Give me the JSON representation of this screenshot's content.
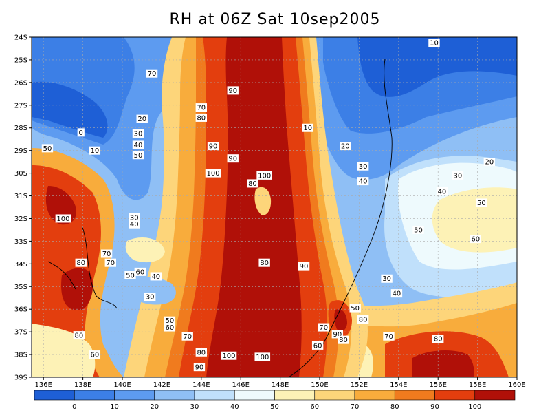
{
  "title": "RH at 06Z Sat 10sep2005",
  "axes": {
    "lon_labels": [
      "136E",
      "138E",
      "140E",
      "142E",
      "144E",
      "146E",
      "148E",
      "150E",
      "152E",
      "154E",
      "156E",
      "158E",
      "160E"
    ],
    "lat_labels": [
      "24S",
      "25S",
      "26S",
      "27S",
      "28S",
      "29S",
      "30S",
      "31S",
      "32S",
      "33S",
      "34S",
      "35S",
      "36S",
      "37S",
      "38S",
      "39S"
    ],
    "lon_range": [
      135.4,
      160
    ],
    "lat_range": [
      -39,
      -24
    ],
    "grid": true
  },
  "colorbar": {
    "labels": [
      "0",
      "10",
      "20",
      "30",
      "40",
      "50",
      "60",
      "70",
      "80",
      "90",
      "100"
    ],
    "colors": [
      "#1e5fd6",
      "#3c7fe6",
      "#5d9bf0",
      "#8fbff5",
      "#c0e0fb",
      "#eefafd",
      "#fdf2b6",
      "#fdd57a",
      "#f8ac3c",
      "#f07b1e",
      "#e33e0e",
      "#b01008"
    ]
  },
  "contour_labels": [
    {
      "text": "10",
      "lon": 155.8,
      "lat": -24.25
    },
    {
      "text": "70",
      "lon": 141.5,
      "lat": -25.6
    },
    {
      "text": "90",
      "lon": 145.6,
      "lat": -26.35
    },
    {
      "text": "70",
      "lon": 144.0,
      "lat": -27.1
    },
    {
      "text": "80",
      "lon": 144.0,
      "lat": -27.55
    },
    {
      "text": "20",
      "lon": 141.0,
      "lat": -27.6
    },
    {
      "text": "10",
      "lon": 149.4,
      "lat": -28.0
    },
    {
      "text": "0",
      "lon": 137.9,
      "lat": -28.2
    },
    {
      "text": "30",
      "lon": 140.8,
      "lat": -28.25
    },
    {
      "text": "40",
      "lon": 140.8,
      "lat": -28.75
    },
    {
      "text": "90",
      "lon": 144.6,
      "lat": -28.8
    },
    {
      "text": "20",
      "lon": 151.3,
      "lat": -28.8
    },
    {
      "text": "10",
      "lon": 138.6,
      "lat": -29.0
    },
    {
      "text": "50",
      "lon": 136.2,
      "lat": -28.9
    },
    {
      "text": "50",
      "lon": 140.8,
      "lat": -29.2
    },
    {
      "text": "90",
      "lon": 145.6,
      "lat": -29.35
    },
    {
      "text": "20",
      "lon": 158.6,
      "lat": -29.5
    },
    {
      "text": "30",
      "lon": 152.2,
      "lat": -29.7
    },
    {
      "text": "100",
      "lon": 144.6,
      "lat": -30.0
    },
    {
      "text": "100",
      "lon": 147.2,
      "lat": -30.1
    },
    {
      "text": "30",
      "lon": 157.0,
      "lat": -30.1
    },
    {
      "text": "80",
      "lon": 146.6,
      "lat": -30.45
    },
    {
      "text": "40",
      "lon": 152.2,
      "lat": -30.35
    },
    {
      "text": "40",
      "lon": 156.2,
      "lat": -30.8
    },
    {
      "text": "50",
      "lon": 158.2,
      "lat": -31.3
    },
    {
      "text": "100",
      "lon": 137.0,
      "lat": -32.0
    },
    {
      "text": "30",
      "lon": 140.6,
      "lat": -31.95
    },
    {
      "text": "40",
      "lon": 140.6,
      "lat": -32.25
    },
    {
      "text": "50",
      "lon": 155.0,
      "lat": -32.5
    },
    {
      "text": "60",
      "lon": 157.9,
      "lat": -32.9
    },
    {
      "text": "70",
      "lon": 139.2,
      "lat": -33.55
    },
    {
      "text": "80",
      "lon": 137.9,
      "lat": -33.95
    },
    {
      "text": "70",
      "lon": 139.4,
      "lat": -33.95
    },
    {
      "text": "80",
      "lon": 147.2,
      "lat": -33.95
    },
    {
      "text": "90",
      "lon": 149.2,
      "lat": -34.1
    },
    {
      "text": "50",
      "lon": 140.4,
      "lat": -34.5
    },
    {
      "text": "60",
      "lon": 140.9,
      "lat": -34.35
    },
    {
      "text": "40",
      "lon": 141.7,
      "lat": -34.55
    },
    {
      "text": "30",
      "lon": 153.4,
      "lat": -34.65
    },
    {
      "text": "30",
      "lon": 141.4,
      "lat": -35.45
    },
    {
      "text": "40",
      "lon": 153.9,
      "lat": -35.3
    },
    {
      "text": "50",
      "lon": 151.8,
      "lat": -35.95
    },
    {
      "text": "80",
      "lon": 152.2,
      "lat": -36.45
    },
    {
      "text": "50",
      "lon": 142.4,
      "lat": -36.5
    },
    {
      "text": "60",
      "lon": 142.4,
      "lat": -36.8
    },
    {
      "text": "70",
      "lon": 150.2,
      "lat": -36.8
    },
    {
      "text": "70",
      "lon": 143.3,
      "lat": -37.2
    },
    {
      "text": "90",
      "lon": 150.9,
      "lat": -37.1
    },
    {
      "text": "80",
      "lon": 137.8,
      "lat": -37.15
    },
    {
      "text": "80",
      "lon": 151.2,
      "lat": -37.35
    },
    {
      "text": "70",
      "lon": 153.5,
      "lat": -37.2
    },
    {
      "text": "80",
      "lon": 156.0,
      "lat": -37.3
    },
    {
      "text": "60",
      "lon": 149.9,
      "lat": -37.6
    },
    {
      "text": "60",
      "lon": 138.6,
      "lat": -38.0
    },
    {
      "text": "80",
      "lon": 144.0,
      "lat": -37.9
    },
    {
      "text": "100",
      "lon": 145.4,
      "lat": -38.05
    },
    {
      "text": "100",
      "lon": 147.1,
      "lat": -38.1
    },
    {
      "text": "90",
      "lon": 143.9,
      "lat": -38.55
    }
  ]
}
